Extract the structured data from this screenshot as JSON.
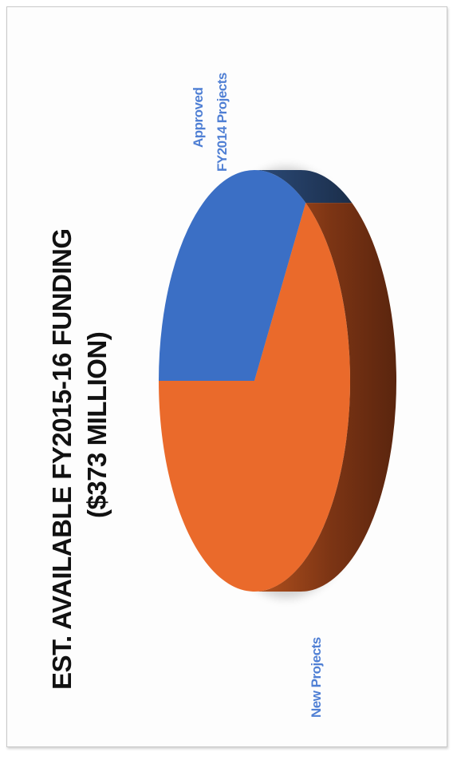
{
  "chart_data": {
    "type": "pie",
    "title_lines": [
      "EST. AVAILABLE FY2015-16 FUNDING",
      "($373 MILLION)"
    ],
    "slices": [
      {
        "label_lines": [
          "Approved",
          "FY2014 Projects"
        ],
        "value": 34,
        "color": "#3b6fc5",
        "side_color": "#22395c"
      },
      {
        "label_lines": [
          "New Projects"
        ],
        "value": 66,
        "color": "#ea6a2b",
        "side_color": "#8a3c18"
      }
    ],
    "label_color": "#4f7fd4",
    "note": "3D pie with slice values estimated as percentages of total"
  }
}
